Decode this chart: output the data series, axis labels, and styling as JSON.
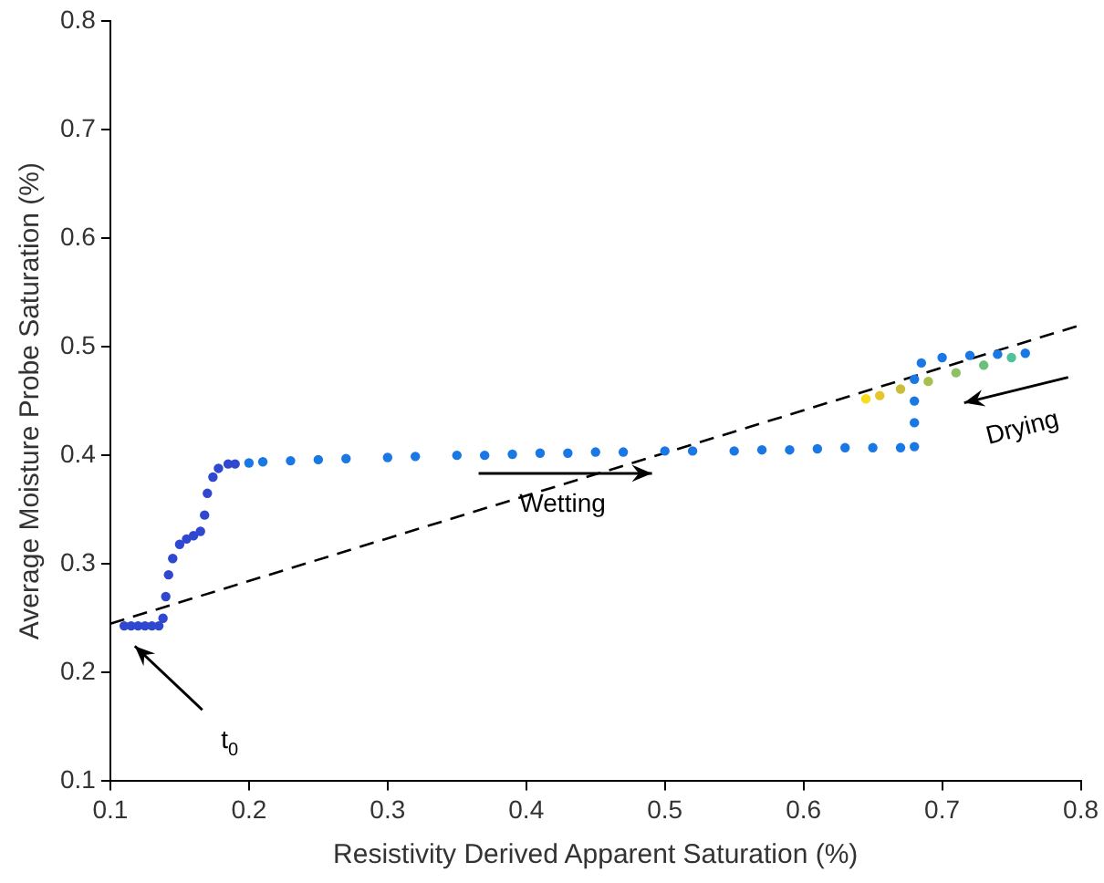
{
  "chart_data": {
    "type": "scatter",
    "xlabel": "Resistivity Derived Apparent Saturation (%)",
    "ylabel": "Average Moisture Probe Saturation (%)",
    "xlim": [
      0.1,
      0.8
    ],
    "xticks": [
      0.1,
      0.2,
      0.3,
      0.4,
      0.5,
      0.6,
      0.7,
      0.8
    ],
    "ylim": [
      0.1,
      0.8
    ],
    "yticks": [
      0.1,
      0.2,
      0.3,
      0.4,
      0.5,
      0.6,
      0.7,
      0.8
    ],
    "grid": false,
    "legend": false,
    "marker": "circle",
    "series": [
      {
        "color": "#3048d0",
        "x": [
          0.11,
          0.115,
          0.12,
          0.125,
          0.13,
          0.135,
          0.138,
          0.14,
          0.142,
          0.145,
          0.15,
          0.155,
          0.16,
          0.165,
          0.168,
          0.17,
          0.174,
          0.178,
          0.185,
          0.19
        ],
        "values": [
          0.243,
          0.243,
          0.243,
          0.243,
          0.243,
          0.243,
          0.25,
          0.27,
          0.29,
          0.305,
          0.318,
          0.323,
          0.326,
          0.33,
          0.345,
          0.365,
          0.38,
          0.388,
          0.392,
          0.392
        ]
      },
      {
        "color": "#1a78e4",
        "x": [
          0.2,
          0.21,
          0.23,
          0.25,
          0.27,
          0.3,
          0.32,
          0.35,
          0.37,
          0.39,
          0.41,
          0.43,
          0.45,
          0.47,
          0.5,
          0.52,
          0.55,
          0.57,
          0.59,
          0.61,
          0.63,
          0.65,
          0.67,
          0.68,
          0.68,
          0.68,
          0.68,
          0.685,
          0.7,
          0.72,
          0.74,
          0.76
        ],
        "values": [
          0.393,
          0.394,
          0.395,
          0.396,
          0.397,
          0.398,
          0.399,
          0.4,
          0.4,
          0.401,
          0.402,
          0.402,
          0.403,
          0.403,
          0.404,
          0.404,
          0.404,
          0.405,
          0.405,
          0.406,
          0.407,
          0.407,
          0.407,
          0.408,
          0.43,
          0.45,
          0.47,
          0.485,
          0.49,
          0.492,
          0.493,
          0.494
        ]
      },
      {
        "color": "#5cc08a",
        "colors": [
          "#4fc29a",
          "#6cc07a",
          "#8cc060",
          "#a8bf4c",
          "#c8be3a",
          "#e8c52a",
          "#f7dd1c"
        ],
        "x": [
          0.75,
          0.73,
          0.71,
          0.69,
          0.67,
          0.655,
          0.645
        ],
        "values": [
          0.49,
          0.483,
          0.476,
          0.468,
          0.461,
          0.455,
          0.452
        ]
      },
      {
        "type": "line",
        "color": "#000000",
        "line_style": "dashed",
        "marker": "none",
        "x": [
          0.1,
          0.8
        ],
        "values": [
          0.245,
          0.52
        ]
      }
    ],
    "annotations": [
      "Wetting",
      "Drying",
      "t$_{0}$"
    ]
  }
}
